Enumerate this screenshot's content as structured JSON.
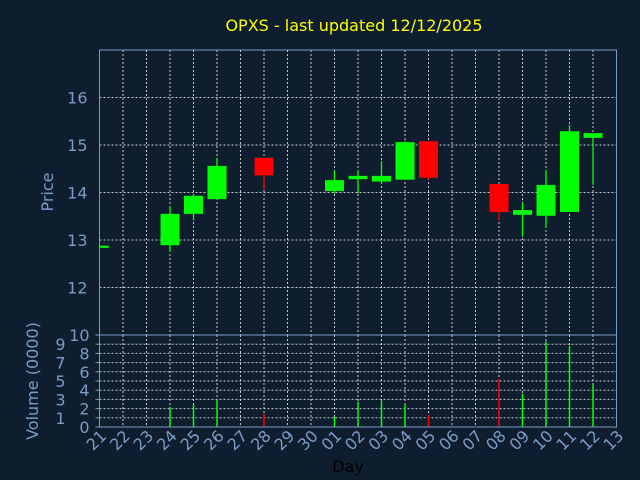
{
  "chart_data": [
    {
      "type": "candlestick",
      "title": "OPXS - last updated 12/12/2025",
      "ylabel": "Price",
      "ylim": [
        11,
        17
      ],
      "yticks": [
        12,
        13,
        14,
        15,
        16
      ],
      "grid": true,
      "colors": {
        "up": "#00ff00",
        "down": "#ff0000",
        "title": "#ffff00",
        "axis": "#7a9cc8",
        "background": "#0f1e2e"
      },
      "candles": [
        {
          "day": "21",
          "open": 12.87,
          "high": 12.88,
          "low": 12.86,
          "close": 12.88
        },
        {
          "day": "24",
          "open": 12.89,
          "high": 13.72,
          "low": 12.75,
          "close": 13.55
        },
        {
          "day": "25",
          "open": 13.55,
          "high": 13.95,
          "low": 13.41,
          "close": 13.93
        },
        {
          "day": "26",
          "open": 13.86,
          "high": 14.73,
          "low": 13.86,
          "close": 14.56
        },
        {
          "day": "28",
          "open": 14.73,
          "high": 14.73,
          "low": 14.07,
          "close": 14.36
        },
        {
          "day": "01",
          "open": 14.03,
          "high": 14.45,
          "low": 13.98,
          "close": 14.26
        },
        {
          "day": "02",
          "open": 14.28,
          "high": 14.47,
          "low": 13.98,
          "close": 14.35
        },
        {
          "day": "03",
          "open": 14.23,
          "high": 14.66,
          "low": 14.19,
          "close": 14.35
        },
        {
          "day": "04",
          "open": 14.27,
          "high": 15.08,
          "low": 14.27,
          "close": 15.06
        },
        {
          "day": "05",
          "open": 15.08,
          "high": 15.08,
          "low": 14.27,
          "close": 14.31
        },
        {
          "day": "08",
          "open": 14.18,
          "high": 14.18,
          "low": 13.41,
          "close": 13.59
        },
        {
          "day": "09",
          "open": 13.53,
          "high": 13.78,
          "low": 13.07,
          "close": 13.63
        },
        {
          "day": "10",
          "open": 13.51,
          "high": 14.47,
          "low": 13.26,
          "close": 14.16
        },
        {
          "day": "11",
          "open": 13.59,
          "high": 15.42,
          "low": 13.59,
          "close": 15.29
        },
        {
          "day": "12",
          "open": 15.15,
          "high": 15.25,
          "low": 14.16,
          "close": 15.25
        }
      ]
    },
    {
      "type": "bar",
      "ylabel": "Volume (0000)",
      "xlabel": "Day",
      "ylim": [
        0,
        10
      ],
      "yticks": [
        0,
        1,
        2,
        3,
        4,
        5,
        6,
        7,
        8,
        9,
        10
      ],
      "grid": true,
      "categories": [
        "21",
        "22",
        "23",
        "24",
        "25",
        "26",
        "27",
        "28",
        "29",
        "30",
        "01",
        "02",
        "03",
        "04",
        "05",
        "06",
        "07",
        "08",
        "09",
        "10",
        "11",
        "12",
        "13"
      ],
      "bars": [
        {
          "day": "24",
          "value": 2.2,
          "direction": "up"
        },
        {
          "day": "25",
          "value": 2.4,
          "direction": "up"
        },
        {
          "day": "26",
          "value": 2.85,
          "direction": "up"
        },
        {
          "day": "28",
          "value": 1.45,
          "direction": "down"
        },
        {
          "day": "01",
          "value": 1.1,
          "direction": "up"
        },
        {
          "day": "02",
          "value": 2.75,
          "direction": "up"
        },
        {
          "day": "03",
          "value": 2.8,
          "direction": "up"
        },
        {
          "day": "04",
          "value": 2.4,
          "direction": "up"
        },
        {
          "day": "05",
          "value": 1.3,
          "direction": "down"
        },
        {
          "day": "08",
          "value": 5.2,
          "direction": "down"
        },
        {
          "day": "09",
          "value": 3.6,
          "direction": "up"
        },
        {
          "day": "10",
          "value": 9.3,
          "direction": "up"
        },
        {
          "day": "11",
          "value": 8.8,
          "direction": "up"
        },
        {
          "day": "12",
          "value": 4.6,
          "direction": "up"
        }
      ]
    }
  ]
}
